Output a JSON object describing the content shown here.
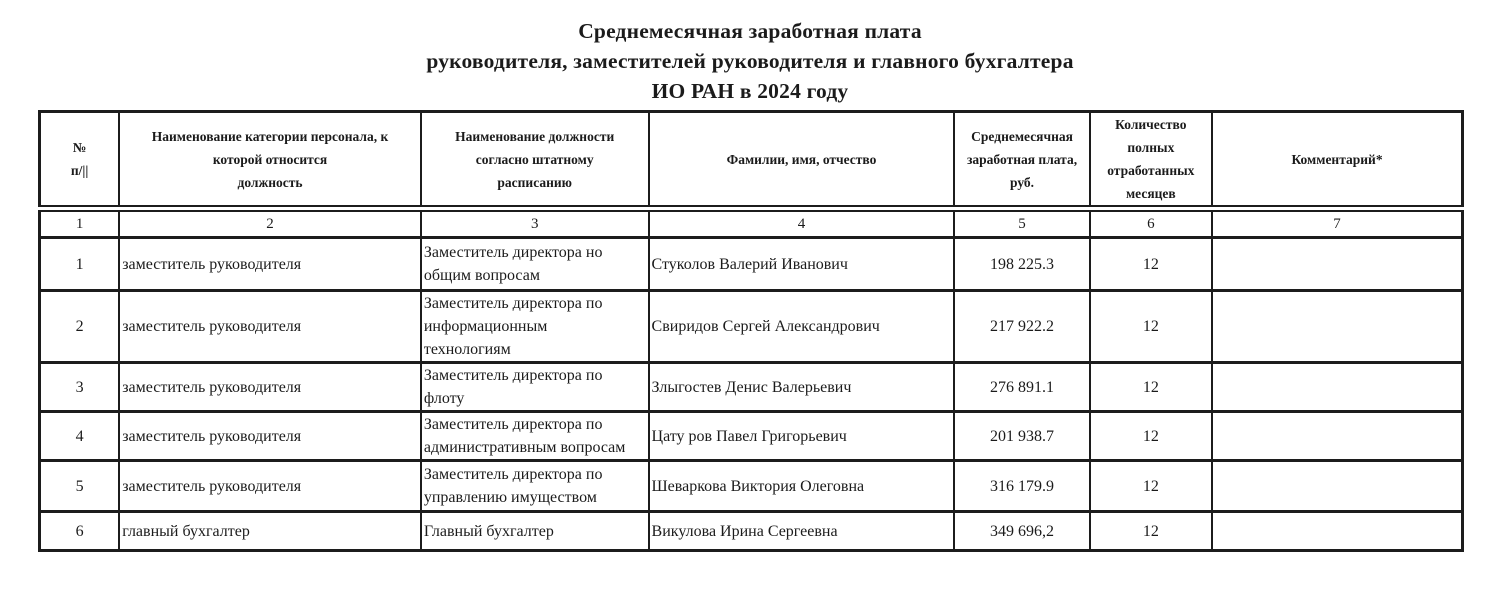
{
  "title": {
    "line1": "Среднемесячная заработная плата",
    "line2": "руководителя, заместителей руководителя и главного бухгалтера",
    "line3": "ИО РАН в 2024 году"
  },
  "table": {
    "headers": [
      "№\nп/||",
      "Наименование категории персонала, к\nкоторой относится\nдолжность",
      "Наименование должности\nсогласно штатному\nрасписанию",
      "Фамилии, имя, отчество",
      "Среднемесячная\nзаработная плата,\nруб.",
      "Количество\nполных\nотработанных\nмесяцев",
      "Комментарий*"
    ],
    "column_numbers": [
      "1",
      "2",
      "3",
      "4",
      "5",
      "6",
      "7"
    ],
    "rows": [
      {
        "num": "1",
        "category": "заместитель руководителя",
        "position": "Заместитель директора но\nобщим вопросам",
        "name": "Стуколов Валерий Иванович",
        "salary": "198 225.3",
        "months": "12",
        "comment": ""
      },
      {
        "num": "2",
        "category": "заместитель руководителя",
        "position": "Заместитель директора по\nинформационным\nтехнологиям",
        "name": "Свиридов Сергей Александрович",
        "salary": "217 922.2",
        "months": "12",
        "comment": ""
      },
      {
        "num": "3",
        "category": "заместитель руководителя",
        "position": "Заместитель директора по\nфлоту",
        "name": "Злыгостев Денис Валерьевич",
        "salary": "276 891.1",
        "months": "12",
        "comment": ""
      },
      {
        "num": "4",
        "category": "заместитель руководителя",
        "position": "Заместитель директора по\nадминистративным вопросам",
        "name": "Цату ров Павел Григорьевич",
        "salary": "201 938.7",
        "months": "12",
        "comment": ""
      },
      {
        "num": "5",
        "category": "заместитель руководителя",
        "position": "Заместитель директора по\nуправлению имуществом",
        "name": "Шеваркова Виктория Олеговна",
        "salary": "316 179.9",
        "months": "12",
        "comment": ""
      },
      {
        "num": "6",
        "category": "главный бухгалтер",
        "position": "Главный бухгалтер",
        "name": "Викулова Ирина Сергеевна",
        "salary": "349 696,2",
        "months": "12",
        "comment": ""
      }
    ]
  },
  "colors": {
    "text": "#1b1b1b",
    "border": "#1c1c1c",
    "background": "#ffffff"
  }
}
